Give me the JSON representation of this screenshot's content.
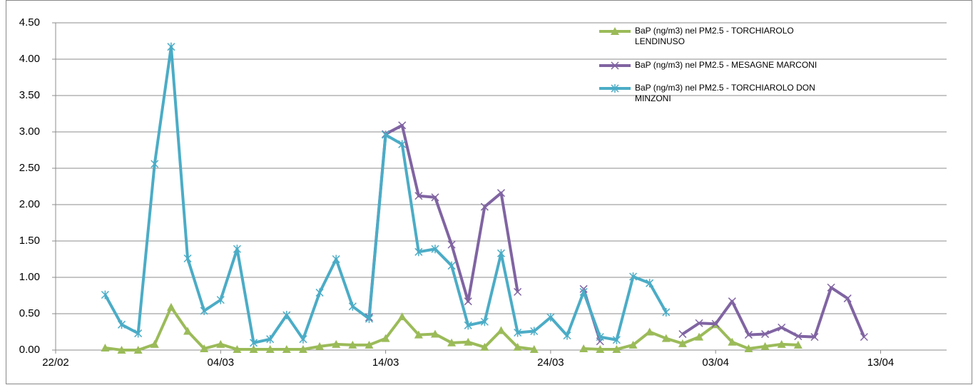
{
  "chart_data": {
    "type": "line",
    "x": [
      "25/02",
      "26/02",
      "27/02",
      "28/02",
      "01/03",
      "02/03",
      "03/03",
      "04/03",
      "05/03",
      "06/03",
      "07/03",
      "08/03",
      "09/03",
      "10/03",
      "11/03",
      "12/03",
      "13/03",
      "14/03",
      "15/03",
      "16/03",
      "17/03",
      "18/03",
      "19/03",
      "20/03",
      "21/03",
      "22/03",
      "23/03",
      "24/03",
      "25/03",
      "26/03",
      "27/03",
      "28/03",
      "29/03",
      "30/03",
      "31/03",
      "01/04",
      "02/04",
      "03/04",
      "04/04",
      "05/04",
      "06/04",
      "07/04",
      "08/04",
      "09/04",
      "10/04",
      "11/04",
      "12/04"
    ],
    "series": [
      {
        "name": "BaP (ng/m3) nel PM2.5 - TORCHIAROLO LENDINUSO",
        "color": "#9bbb59",
        "marker": "triangle",
        "values": [
          0.03,
          0.0,
          0.0,
          0.08,
          0.59,
          0.26,
          0.02,
          0.08,
          0.01,
          0.01,
          0.01,
          0.01,
          0.01,
          0.05,
          0.08,
          0.07,
          0.07,
          0.16,
          0.46,
          0.21,
          0.22,
          0.1,
          0.11,
          0.04,
          0.27,
          0.04,
          0.01,
          null,
          null,
          0.02,
          0.01,
          0.01,
          0.07,
          0.25,
          0.16,
          0.09,
          0.18,
          0.35,
          0.11,
          0.02,
          0.05,
          0.08,
          0.07,
          null,
          null,
          null,
          null
        ]
      },
      {
        "name": "BaP (ng/m3) nel PM2.5 - MESAGNE MARCONI",
        "color": "#8064a2",
        "marker": "x",
        "values": [
          null,
          null,
          null,
          null,
          null,
          null,
          null,
          null,
          null,
          null,
          null,
          null,
          null,
          null,
          null,
          null,
          0.45,
          2.97,
          3.09,
          2.12,
          2.1,
          1.45,
          0.67,
          1.97,
          2.16,
          0.8,
          null,
          null,
          null,
          0.84,
          0.12,
          null,
          null,
          null,
          null,
          0.22,
          0.37,
          0.36,
          0.67,
          0.21,
          0.22,
          0.31,
          0.19,
          0.18,
          0.86,
          0.71,
          0.18
        ]
      },
      {
        "name": "BaP (ng/m3) nel PM2.5 - TORCHIAROLO DON MINZONI",
        "color": "#4bacc6",
        "marker": "star",
        "values": [
          0.76,
          0.35,
          0.23,
          2.56,
          4.17,
          1.26,
          0.54,
          0.69,
          1.39,
          0.1,
          0.15,
          0.48,
          0.15,
          0.79,
          1.25,
          0.6,
          0.43,
          2.96,
          2.83,
          1.35,
          1.39,
          1.16,
          0.34,
          0.39,
          1.33,
          0.24,
          0.26,
          0.45,
          0.2,
          0.8,
          0.18,
          0.14,
          1.01,
          0.92,
          0.52,
          null,
          null,
          null,
          null,
          null,
          null,
          null,
          null,
          null,
          null,
          null,
          null
        ]
      }
    ],
    "xlim": [
      "22/02",
      "17/04"
    ],
    "xticks": [
      "22/02",
      "04/03",
      "14/03",
      "24/03",
      "03/04",
      "13/04"
    ],
    "ylim": [
      0,
      4.5
    ],
    "yticks": [
      {
        "value": 0,
        "label": "0.00"
      },
      {
        "value": 0.5,
        "label": "0.50"
      },
      {
        "value": 1,
        "label": "1.00"
      },
      {
        "value": 1.5,
        "label": "1.50"
      },
      {
        "value": 2,
        "label": "2.00"
      },
      {
        "value": 2.5,
        "label": "2.50"
      },
      {
        "value": 3,
        "label": "3.00"
      },
      {
        "value": 3.5,
        "label": "3.50"
      },
      {
        "value": 4,
        "label": "4.00"
      },
      {
        "value": 4.5,
        "label": "4.50"
      }
    ],
    "grid": true
  }
}
